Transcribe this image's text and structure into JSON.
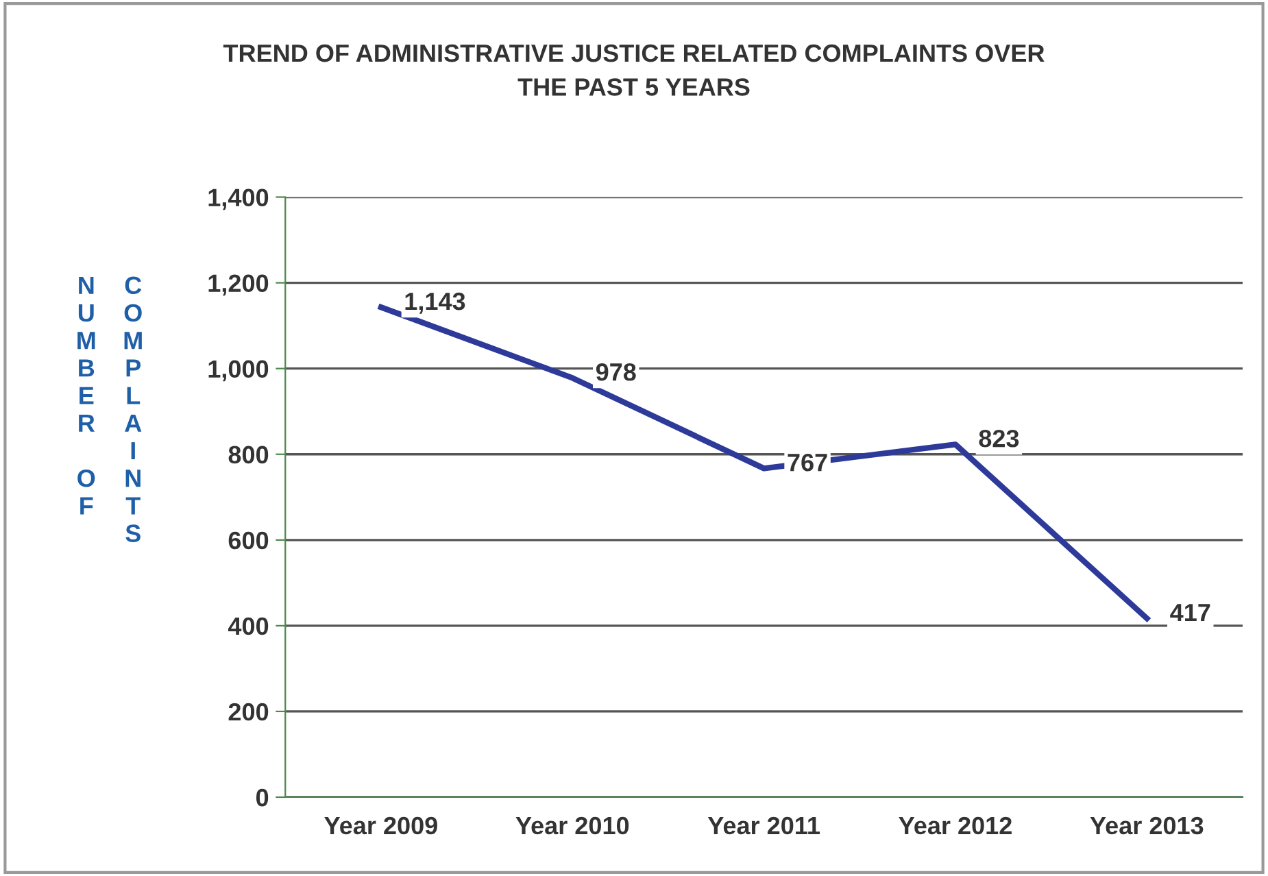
{
  "chart_data": {
    "type": "line",
    "title": "TREND OF ADMINISTRATIVE JUSTICE RELATED COMPLAINTS OVER\nTHE PAST 5 YEARS",
    "ylabel": "NUMBER OF COMPLAINTS",
    "categories": [
      "Year 2009",
      "Year 2010",
      "Year 2011",
      "Year 2012",
      "Year 2013"
    ],
    "series": [
      {
        "color": "#2e3a9a",
        "values": [
          1143,
          978,
          767,
          823,
          417
        ]
      }
    ],
    "value_labels": [
      "1,143",
      "978",
      "767",
      "823",
      "417"
    ],
    "ylim": [
      0,
      1400
    ],
    "yticks": [
      0,
      200,
      400,
      600,
      800,
      {
        "value": 1000,
        "label": "1,000"
      },
      {
        "value": 1200,
        "label": "1,200"
      },
      {
        "value": 1400,
        "label": "1,400"
      }
    ],
    "grid": "y",
    "marker": "none",
    "line_style": "solid",
    "legend": false
  }
}
